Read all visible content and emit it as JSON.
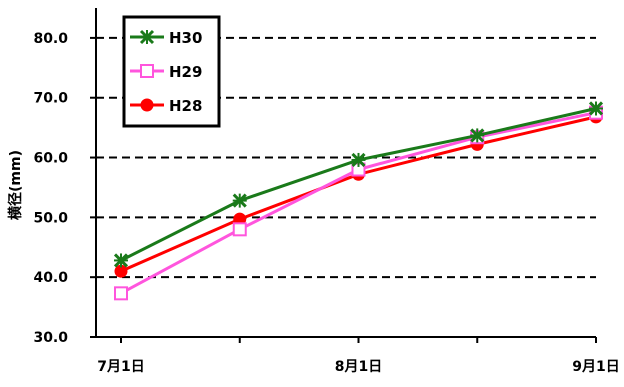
{
  "chart_data": {
    "type": "line",
    "ylabel": "横径(mm)",
    "x_tick_labels": [
      "7月1日",
      "",
      "8月1日",
      "",
      "9月1日"
    ],
    "y_tick_labels": [
      "80.0",
      "70.0",
      "60.0",
      "50.0",
      "40.0",
      "30.0"
    ],
    "ylim": [
      30,
      85
    ],
    "y_ticks": [
      80,
      70,
      60,
      50,
      40,
      30
    ],
    "grid": "horizontal-dashed",
    "legend_position": "top-left",
    "series": [
      {
        "name": "H30",
        "color": "#1a7a1a",
        "marker": "star",
        "values": [
          42.8,
          52.8,
          59.6,
          63.7,
          68.2
        ]
      },
      {
        "name": "H29",
        "color": "#ff55dd",
        "marker": "square-open",
        "values": [
          37.3,
          48.0,
          58.0,
          63.4,
          67.5
        ]
      },
      {
        "name": "H28",
        "color": "#ff0000",
        "marker": "circle",
        "values": [
          41.0,
          49.7,
          57.2,
          62.2,
          66.8
        ]
      }
    ]
  }
}
